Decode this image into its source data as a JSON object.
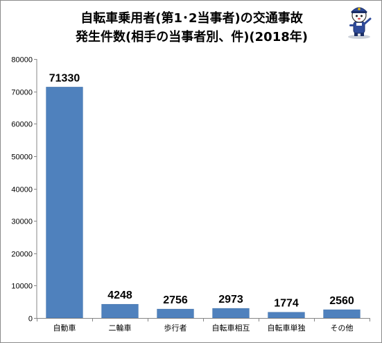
{
  "title_line1": "自転車乗用者(第1･2当事者)の交通事故",
  "title_line2": "発生件数(相手の当事者別、件)(2018年)",
  "mascot_icon": "police-mascot-icon",
  "colors": {
    "bar": "#4f81bd",
    "bar_edge": "#3f6fa8",
    "axis": "#868686",
    "grid": "#d9d9d9"
  },
  "chart_data": {
    "type": "bar",
    "title": "自転車乗用者(第1･2当事者)の交通事故発生件数(相手の当事者別、件)(2018年)",
    "categories": [
      "自動車",
      "二輪車",
      "歩行者",
      "自転車相互",
      "自転車単独",
      "その他"
    ],
    "values": [
      71330,
      4248,
      2756,
      2973,
      1774,
      2560
    ],
    "data_labels": [
      "71330",
      "4248",
      "2756",
      "2973",
      "1774",
      "2560"
    ],
    "ylim": [
      0,
      80000
    ],
    "yticks": [
      0,
      10000,
      20000,
      30000,
      40000,
      50000,
      60000,
      70000,
      80000
    ],
    "ytick_labels": [
      "0",
      "10000",
      "20000",
      "30000",
      "40000",
      "50000",
      "60000",
      "70000",
      "80000"
    ],
    "grid": false,
    "legend": "none"
  }
}
